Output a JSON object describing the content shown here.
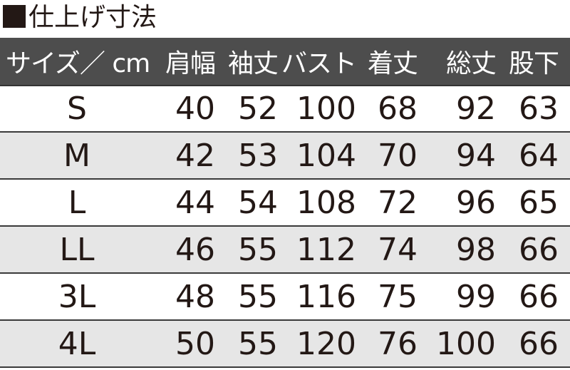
{
  "title": "仕上げ寸法",
  "colors": {
    "header_bg": "#4d4d4d",
    "alt_row_bg": "#e6e6e6",
    "text": "#231815"
  },
  "table": {
    "headers": [
      "サイズ／ cm",
      "肩幅",
      "袖丈",
      "バスト",
      "着丈",
      "総丈",
      "股下"
    ],
    "rows": [
      [
        "S",
        "40",
        "52",
        "100",
        "68",
        "92",
        "63"
      ],
      [
        "M",
        "42",
        "53",
        "104",
        "70",
        "94",
        "64"
      ],
      [
        "L",
        "44",
        "54",
        "108",
        "72",
        "96",
        "65"
      ],
      [
        "LL",
        "46",
        "55",
        "112",
        "74",
        "98",
        "66"
      ],
      [
        "3L",
        "48",
        "55",
        "116",
        "75",
        "99",
        "66"
      ],
      [
        "4L",
        "50",
        "55",
        "120",
        "76",
        "100",
        "66"
      ]
    ]
  }
}
